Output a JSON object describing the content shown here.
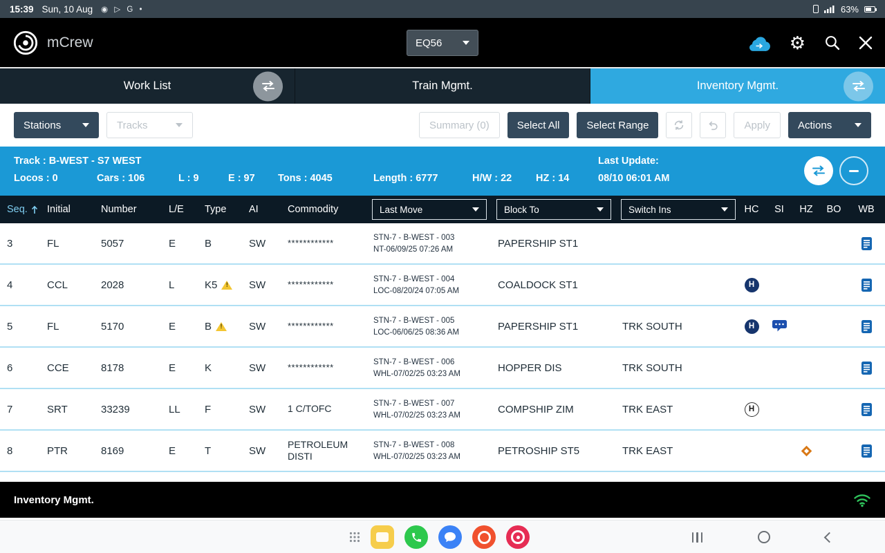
{
  "status_bar": {
    "time": "15:39",
    "date": "Sun, 10 Aug",
    "left_icons_text": "◉ ▷ G •",
    "battery": "63%"
  },
  "header": {
    "app_name": "mCrew",
    "equipment_value": "EQ56"
  },
  "tabs": {
    "work_list": "Work List",
    "train_mgmt": "Train Mgmt.",
    "inventory_mgmt": "Inventory Mgmt."
  },
  "toolbar": {
    "stations": "Stations",
    "tracks": "Tracks",
    "summary": "Summary (0)",
    "select_all": "Select All",
    "select_range": "Select Range",
    "apply": "Apply",
    "actions": "Actions"
  },
  "track_info": {
    "track": "Track : B-WEST - S7 WEST",
    "locos": "Locos : 0",
    "cars": "Cars : 106",
    "l": "L : 9",
    "e": "E : 97",
    "tons": "Tons : 4045",
    "length": "Length : 6777",
    "hw": "H/W : 22",
    "hz": "HZ : 14",
    "last_update_label": "Last Update:",
    "last_update_value": "08/10 06:01 AM"
  },
  "table": {
    "headers": {
      "seq": "Seq.",
      "initial": "Initial",
      "number": "Number",
      "le": "L/E",
      "type": "Type",
      "ai": "AI",
      "commodity": "Commodity",
      "last_move": "Last Move",
      "block_to": "Block To",
      "switch_ins": "Switch Ins",
      "hc": "HC",
      "si": "SI",
      "hz": "HZ",
      "bo": "BO",
      "wb": "WB"
    },
    "rows": [
      {
        "seq": "3",
        "initial": "FL",
        "number": "5057",
        "le": "E",
        "type": "B",
        "type_warning": false,
        "ai": "SW",
        "commodity": "************",
        "masked": true,
        "last_move_line1": "STN-7 - B-WEST - 003",
        "last_move_line2": "NT-06/09/25 07:26 AM",
        "block_to": "PAPERSHIP ST1",
        "switch_ins": "",
        "hc_icon": "",
        "si_icon": "",
        "hz_icon": "",
        "bo_icon": "",
        "wb_icon": "waybill-document"
      },
      {
        "seq": "4",
        "initial": "CCL",
        "number": "2028",
        "le": "L",
        "type": "K5",
        "type_warning": true,
        "ai": "SW",
        "commodity": "************",
        "masked": true,
        "last_move_line1": "STN-7 - B-WEST - 004",
        "last_move_line2": "LOC-08/20/24 07:05 AM",
        "block_to": "COALDOCK ST1",
        "switch_ins": "",
        "hc_icon": "hold-filled",
        "si_icon": "",
        "hz_icon": "",
        "bo_icon": "",
        "wb_icon": "waybill-document"
      },
      {
        "seq": "5",
        "initial": "FL",
        "number": "5170",
        "le": "E",
        "type": "B",
        "type_warning": true,
        "ai": "SW",
        "commodity": "************",
        "masked": true,
        "last_move_line1": "STN-7 - B-WEST - 005",
        "last_move_line2": "LOC-06/06/25 08:36 AM",
        "block_to": "PAPERSHIP ST1",
        "switch_ins": "TRK SOUTH",
        "hc_icon": "hold-filled",
        "si_icon": "comment",
        "hz_icon": "",
        "bo_icon": "",
        "wb_icon": "waybill-document"
      },
      {
        "seq": "6",
        "initial": "CCE",
        "number": "8178",
        "le": "E",
        "type": "K",
        "type_warning": false,
        "ai": "SW",
        "commodity": "************",
        "masked": true,
        "last_move_line1": "STN-7 - B-WEST - 006",
        "last_move_line2": "WHL-07/02/25 03:23 AM",
        "block_to": "HOPPER DIS",
        "switch_ins": "TRK SOUTH",
        "hc_icon": "",
        "si_icon": "",
        "hz_icon": "",
        "bo_icon": "",
        "wb_icon": "waybill-document"
      },
      {
        "seq": "7",
        "initial": "SRT",
        "number": "33239",
        "le": "LL",
        "type": "F",
        "type_warning": false,
        "ai": "SW",
        "commodity": "1 C/TOFC",
        "masked": false,
        "last_move_line1": "STN-7 - B-WEST - 007",
        "last_move_line2": "WHL-07/02/25 03:23 AM",
        "block_to": "COMPSHIP ZIM",
        "switch_ins": "TRK EAST",
        "hc_icon": "hold-outlined",
        "si_icon": "",
        "hz_icon": "",
        "bo_icon": "",
        "wb_icon": "waybill-document"
      },
      {
        "seq": "8",
        "initial": "PTR",
        "number": "8169",
        "le": "E",
        "type": "T",
        "type_warning": false,
        "ai": "SW",
        "commodity": "PETROLEUM DISTI",
        "masked": false,
        "last_move_line1": "STN-7 - B-WEST - 008",
        "last_move_line2": "WHL-07/02/25 03:23 AM",
        "block_to": "PETROSHIP ST5",
        "switch_ins": "TRK EAST",
        "hc_icon": "",
        "si_icon": "",
        "hz_icon": "hazmat-diamond",
        "bo_icon": "",
        "wb_icon": "waybill-document"
      }
    ]
  },
  "badges": {
    "hold_letter": "H"
  },
  "footer": {
    "title": "Inventory Mgmt."
  },
  "colors": {
    "accent_blue": "#2fa9e0",
    "info_bar_blue": "#1b99d6",
    "table_header_dark": "#0c1a25",
    "row_divider_blue": "#b0e0f4",
    "hold_badge_navy": "#16356d",
    "hazmat_orange": "#d97917",
    "warning_yellow": "#f3c632",
    "wifi_green": "#2fc25b"
  }
}
